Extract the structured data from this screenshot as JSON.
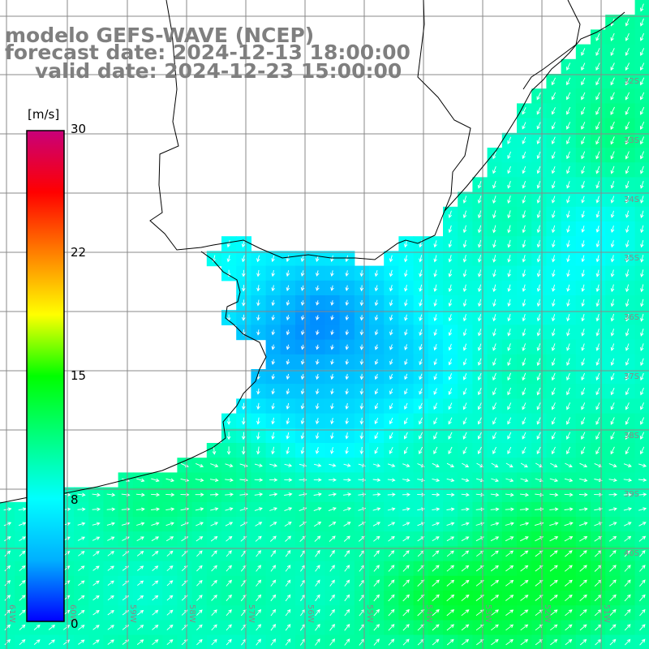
{
  "title": {
    "model": "modelo GEFS-WAVE (NCEP)",
    "forecast_date": "forecast date: 2024-12-13 18:00:00",
    "valid_date": "valid date: 2024-12-23 15:00:00"
  },
  "colorbar": {
    "unit": "[m/s]",
    "ticks": [
      "30",
      "22",
      "15",
      "8",
      "0"
    ],
    "min": 0,
    "max": 30,
    "colors": [
      "#0000ff",
      "#00b0ff",
      "#00ffff",
      "#00ff80",
      "#00ff00",
      "#ffff00",
      "#ff8000",
      "#ff0000",
      "#c8007a"
    ]
  },
  "graticule": {
    "lat_labels": [
      "32S",
      "33S",
      "34S",
      "35S",
      "36S",
      "37S",
      "38S",
      "39S",
      "40S"
    ],
    "lon_labels": [
      "61W",
      "60W",
      "59W",
      "58W",
      "57W",
      "56W",
      "55W",
      "54W",
      "53W",
      "52W",
      "51W"
    ]
  },
  "colors": {
    "land": "#ffffff",
    "coast": "#000000",
    "grid": "#888888",
    "arrow": "#ffffff",
    "title": "#7f7f7f"
  }
}
